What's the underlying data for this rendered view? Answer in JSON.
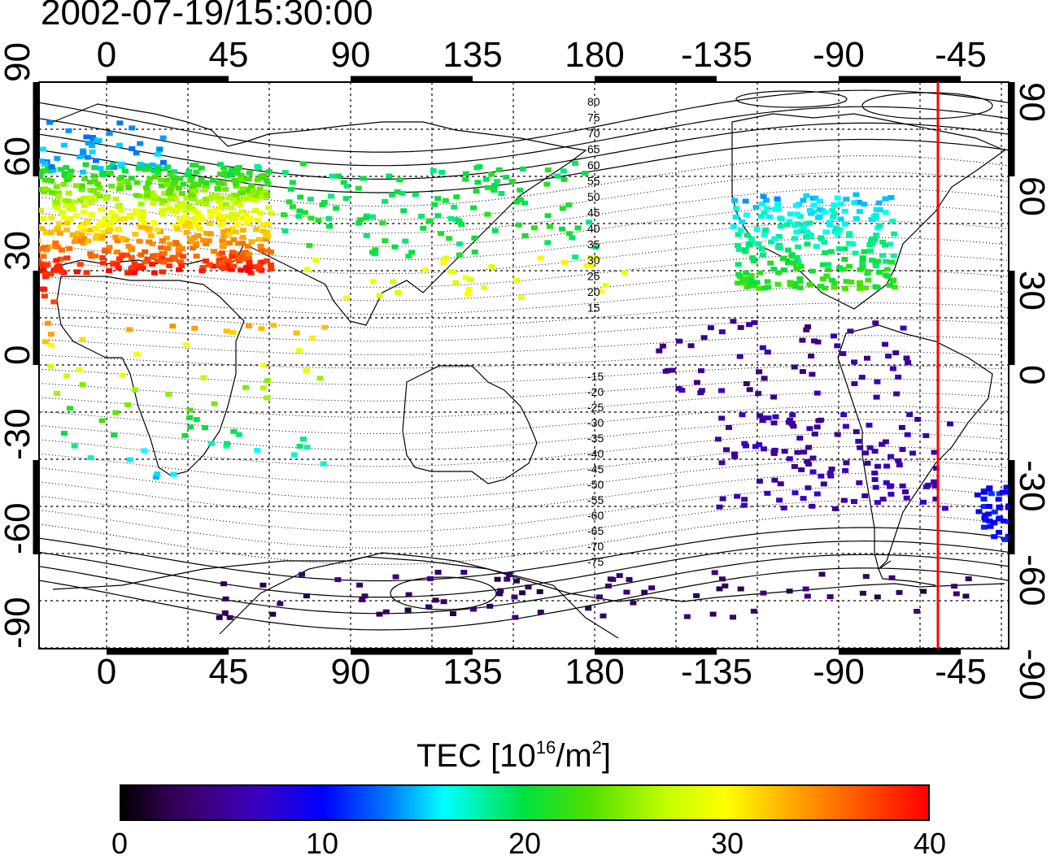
{
  "timestamp": "2002-07-19/15:30:00",
  "longitude_ticks": [
    "0",
    "45",
    "90",
    "135",
    "180",
    "-135",
    "-90",
    "-45"
  ],
  "latitude_ticks": [
    "90",
    "60",
    "30",
    "0",
    "-30",
    "-60",
    "-90"
  ],
  "contour_labels_north": [
    "80",
    "75",
    "70",
    "65",
    "60",
    "55",
    "50",
    "45",
    "40",
    "35",
    "30",
    "25",
    "20",
    "15"
  ],
  "contour_labels_south": [
    "-15",
    "-20",
    "-25",
    "-30",
    "-35",
    "-40",
    "-45",
    "-50",
    "-55",
    "-60",
    "-65",
    "-70",
    "-75"
  ],
  "colorbar": {
    "title_prefix": "TEC  [10",
    "title_exp1": "16",
    "title_mid": "/m",
    "title_exp2": "2",
    "title_suffix": "]",
    "tick_labels": [
      "0",
      "10",
      "20",
      "30",
      "40"
    ],
    "min": 0,
    "max": 40
  },
  "marker_meridian_lon": -53,
  "colors": {
    "marker_line": "#ff0000",
    "high_tec": "#ff0000",
    "low_tec": "#2a0045"
  }
}
